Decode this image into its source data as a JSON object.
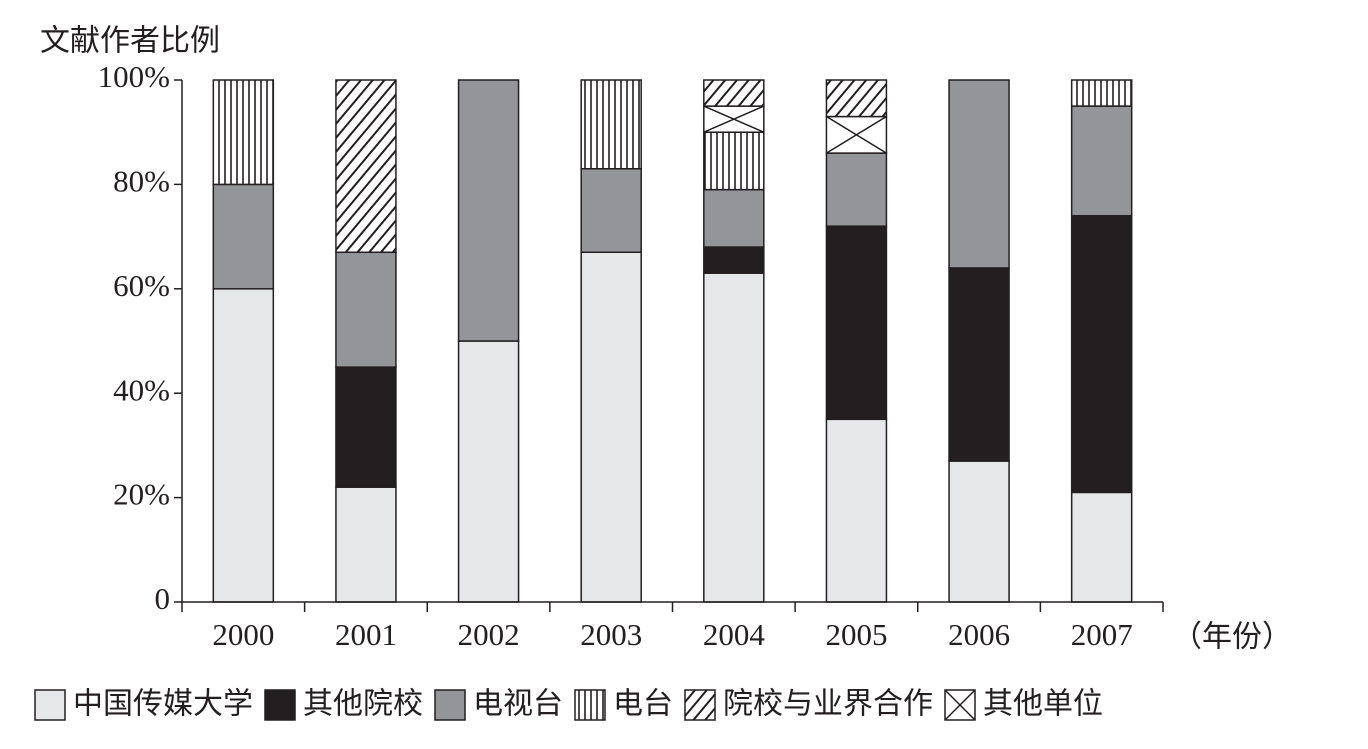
{
  "chart_data": {
    "type": "stacked_bar",
    "y_label": "文献作者比例",
    "x_label": "（年份）",
    "categories": [
      "2000",
      "2001",
      "2002",
      "2003",
      "2004",
      "2005",
      "2006",
      "2007"
    ],
    "ylim": [
      0,
      100
    ],
    "yticks": [
      0,
      {
        "value": 20,
        "label": "20%"
      },
      {
        "value": 40,
        "label": "40%"
      },
      {
        "value": 60,
        "label": "60%"
      },
      {
        "value": 80,
        "label": "80%"
      },
      {
        "value": 100,
        "label": "100%"
      }
    ],
    "series": [
      {
        "name": "中国传媒大学",
        "color": "#e6e7e9",
        "values": [
          60,
          22,
          50,
          67,
          63,
          35,
          27,
          21
        ]
      },
      {
        "name": "其他院校",
        "color": "#231f20",
        "values": [
          0,
          23,
          0,
          0,
          5,
          37,
          37,
          53
        ]
      },
      {
        "name": "电视台",
        "color": "#939598",
        "values": [
          20,
          22,
          50,
          16,
          11,
          14,
          36,
          21
        ]
      },
      {
        "name": "电台",
        "color": "#ffffff",
        "pattern": "vertical",
        "values": [
          20,
          0,
          0,
          17,
          11,
          0,
          0,
          5
        ]
      },
      {
        "name": "院校与业界合作",
        "color": "#ffffff",
        "pattern": "diagonal",
        "values": [
          0,
          33,
          0,
          0,
          5,
          7,
          0,
          0
        ]
      },
      {
        "name": "其他单位",
        "color": "#ffffff",
        "pattern": "cross",
        "values": [
          0,
          0,
          0,
          0,
          5,
          7,
          0,
          0
        ]
      }
    ],
    "legend": "bottom"
  }
}
